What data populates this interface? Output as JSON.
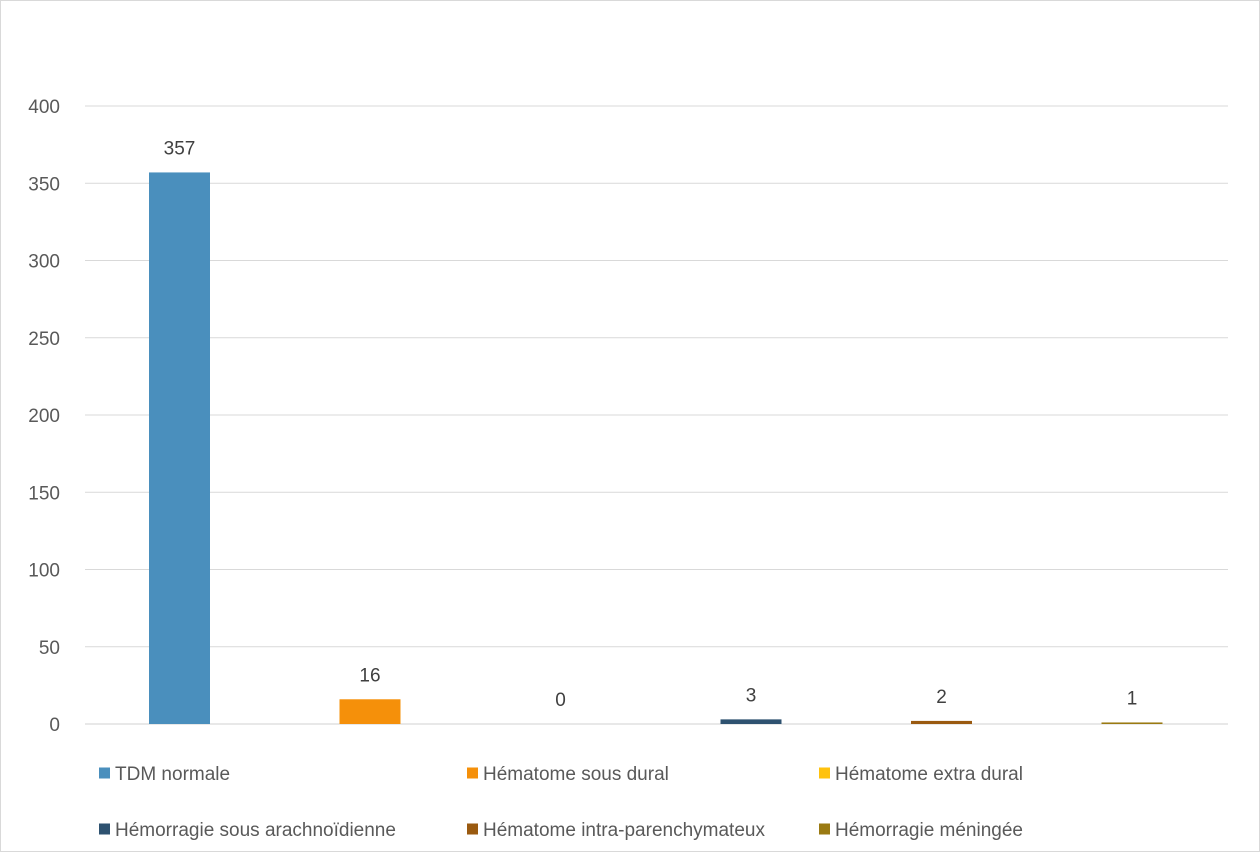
{
  "chart_data": {
    "type": "bar",
    "title": "",
    "xlabel": "",
    "ylabel": "",
    "ylim": [
      0,
      400
    ],
    "yticks": [
      0,
      50,
      100,
      150,
      200,
      250,
      300,
      350,
      400
    ],
    "grid": true,
    "legend_position": "bottom",
    "series": [
      {
        "name": "TDM normale",
        "value": 357,
        "label": "357",
        "color": "#4a8fbd"
      },
      {
        "name": "Hématome sous dural",
        "value": 16,
        "label": "16",
        "color": "#f5900a"
      },
      {
        "name": "Hématome extra dural",
        "value": 0,
        "label": "0",
        "color": "#ffc20e"
      },
      {
        "name": "Hémorragie sous arachnoïdienne",
        "value": 3,
        "label": "3",
        "color": "#2e5270"
      },
      {
        "name": "Hématome intra-parenchymateux",
        "value": 2,
        "label": "2",
        "color": "#9a5a10"
      },
      {
        "name": "Hémorragie méningée",
        "value": 1,
        "label": "1",
        "color": "#9a7a12"
      }
    ]
  }
}
